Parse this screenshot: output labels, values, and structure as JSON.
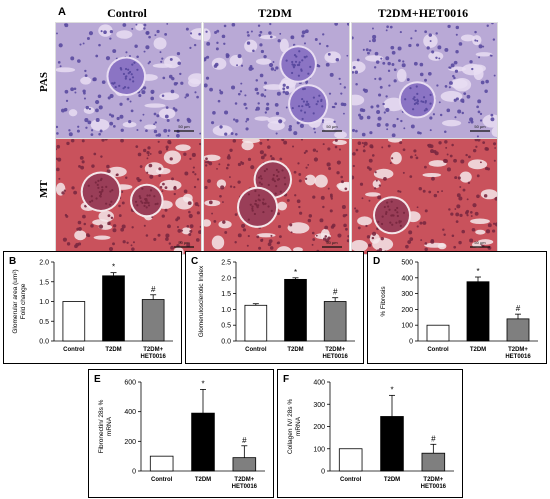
{
  "figure": {
    "letters": {
      "A": "A",
      "B": "B",
      "C": "C",
      "D": "D",
      "E": "E",
      "F": "F"
    },
    "columns": [
      "Control",
      "T2DM",
      "T2DM+HET0016"
    ],
    "rows": [
      "PAS",
      "MT"
    ],
    "scale_bar": "50 µm",
    "colors": {
      "pas_bg": "#b9a9d6",
      "pas_cell": "#5a4aa0",
      "pas_tubule": "#e8ddf2",
      "mt_bg": "#c9525c",
      "mt_cell": "#7a2840",
      "mt_tubule": "#f4e7ea",
      "bar_control": "#ffffff",
      "bar_t2dm": "#000000",
      "bar_het": "#7f7f7f"
    }
  },
  "chart_data": [
    {
      "id": "B",
      "type": "bar",
      "categories": [
        "Control",
        "T2DM",
        "T2DM+\nHET0016"
      ],
      "values": [
        1.0,
        1.65,
        1.05
      ],
      "errors": [
        0.0,
        0.08,
        0.12
      ],
      "sig": [
        "",
        "*",
        "#"
      ],
      "ylabel": "Glomerular area (um²)\nFold change",
      "ylim": [
        0,
        2.0
      ],
      "yticks": [
        "0.0",
        "0.5",
        "1.0",
        "1.5",
        "2.0"
      ],
      "yticks_v": [
        0,
        0.5,
        1.0,
        1.5,
        2.0
      ]
    },
    {
      "id": "C",
      "type": "bar",
      "categories": [
        "Control",
        "T2DM",
        "T2DM+\nHET0016"
      ],
      "values": [
        1.13,
        1.95,
        1.25
      ],
      "errors": [
        0.05,
        0.05,
        0.12
      ],
      "sig": [
        "",
        "*",
        "#"
      ],
      "ylabel": "Glomerulosclerotic Index",
      "ylim": [
        0,
        2.5
      ],
      "yticks": [
        "0.0",
        "0.5",
        "1.0",
        "1.5",
        "2.0",
        "2.5"
      ],
      "yticks_v": [
        0,
        0.5,
        1.0,
        1.5,
        2.0,
        2.5
      ]
    },
    {
      "id": "D",
      "type": "bar",
      "categories": [
        "Control",
        "T2DM",
        "T2DM+\nHET0016"
      ],
      "values": [
        100,
        375,
        140
      ],
      "errors": [
        0,
        30,
        30
      ],
      "sig": [
        "",
        "*",
        "#"
      ],
      "ylabel": "% Fibrosis",
      "ylim": [
        0,
        500
      ],
      "yticks": [
        "0",
        "100",
        "200",
        "300",
        "400",
        "500"
      ],
      "yticks_v": [
        0,
        100,
        200,
        300,
        400,
        500
      ]
    },
    {
      "id": "E",
      "type": "bar",
      "categories": [
        "Control",
        "T2DM",
        "T2DM+\nHET0016"
      ],
      "values": [
        100,
        390,
        90
      ],
      "errors": [
        0,
        160,
        80
      ],
      "sig": [
        "",
        "*",
        "#"
      ],
      "ylabel": "Fibronectin/ 28s %\nmRNA",
      "ylim": [
        0,
        600
      ],
      "yticks": [
        "0",
        "200",
        "400",
        "600"
      ],
      "yticks_v": [
        0,
        200,
        400,
        600
      ]
    },
    {
      "id": "F",
      "type": "bar",
      "categories": [
        "Control",
        "T2DM",
        "T2DM+\nHET0016"
      ],
      "values": [
        100,
        245,
        80
      ],
      "errors": [
        0,
        95,
        40
      ],
      "sig": [
        "",
        "*",
        "#"
      ],
      "ylabel": "Collagen IV/ 28s %\nmRNA",
      "ylim": [
        0,
        400
      ],
      "yticks": [
        "0",
        "100",
        "200",
        "300",
        "400"
      ],
      "yticks_v": [
        0,
        100,
        200,
        300,
        400
      ]
    }
  ]
}
